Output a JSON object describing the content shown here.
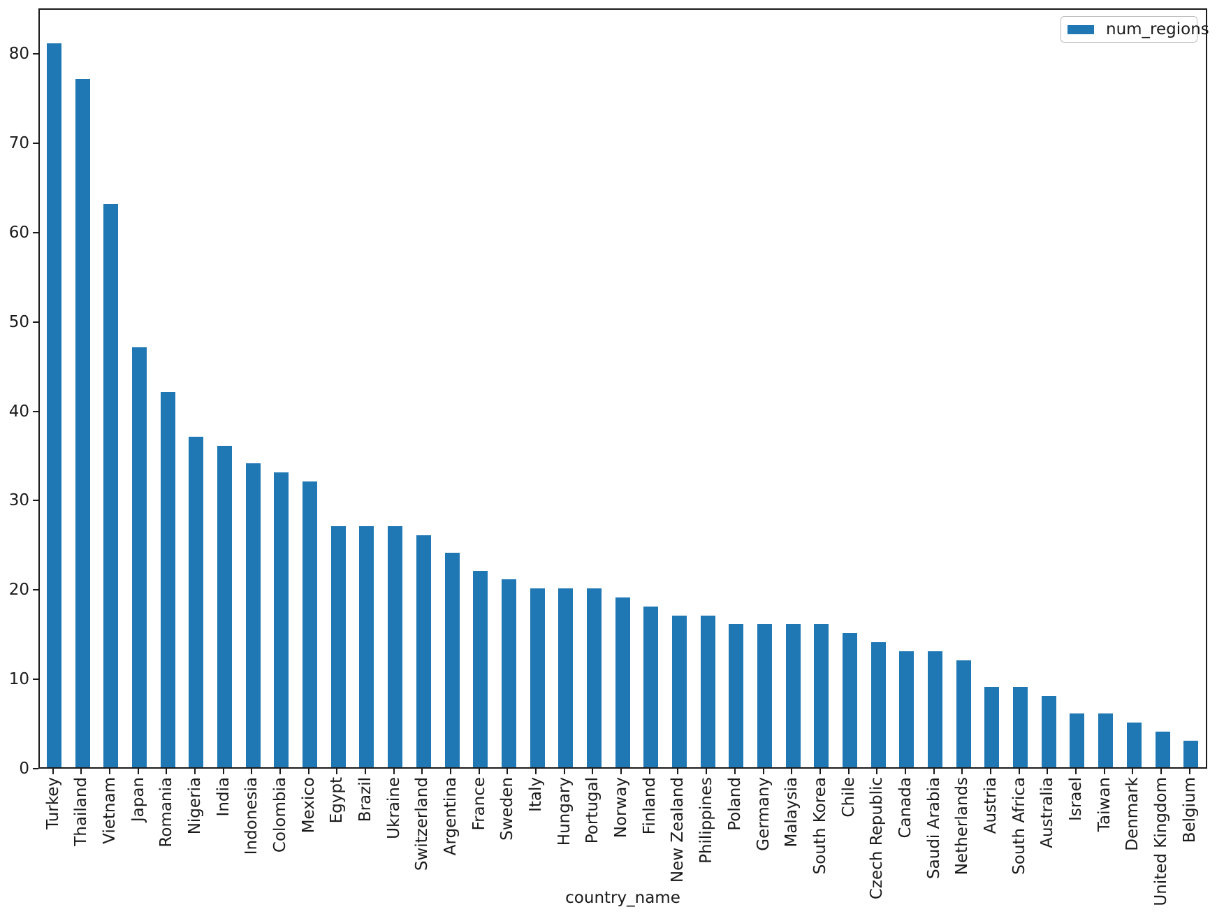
{
  "chart_data": {
    "type": "bar",
    "title": "",
    "xlabel": "country_name",
    "ylabel": "",
    "categories": [
      "Turkey",
      "Thailand",
      "Vietnam",
      "Japan",
      "Romania",
      "Nigeria",
      "India",
      "Indonesia",
      "Colombia",
      "Mexico",
      "Egypt",
      "Brazil",
      "Ukraine",
      "Switzerland",
      "Argentina",
      "France",
      "Sweden",
      "Italy",
      "Hungary",
      "Portugal",
      "Norway",
      "Finland",
      "New Zealand",
      "Philippines",
      "Poland",
      "Germany",
      "Malaysia",
      "South Korea",
      "Chile",
      "Czech Republic",
      "Canada",
      "Saudi Arabia",
      "Netherlands",
      "Austria",
      "South Africa",
      "Australia",
      "Israel",
      "Taiwan",
      "Denmark",
      "United Kingdom",
      "Belgium"
    ],
    "series": [
      {
        "name": "num_regions",
        "values": [
          81,
          77,
          63,
          47,
          42,
          37,
          36,
          34,
          33,
          32,
          27,
          27,
          27,
          26,
          24,
          22,
          21,
          20,
          20,
          20,
          19,
          18,
          17,
          17,
          16,
          16,
          16,
          16,
          15,
          14,
          13,
          13,
          12,
          9,
          9,
          8,
          6,
          6,
          5,
          4,
          3
        ]
      }
    ],
    "ylim": [
      0,
      85
    ],
    "yticks": [
      0,
      10,
      20,
      30,
      40,
      50,
      60,
      70,
      80
    ],
    "grid": false,
    "legend_position": "upper right",
    "bar_color": "#1f77b4"
  }
}
